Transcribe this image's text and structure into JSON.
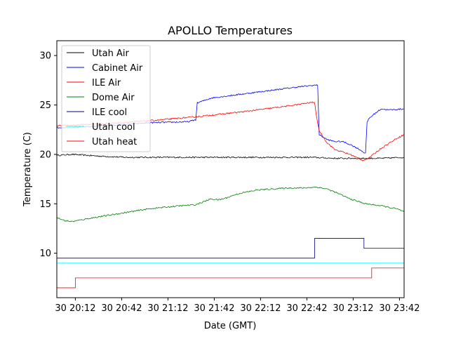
{
  "chart_data": {
    "type": "line",
    "title": "APOLLO Temperatures",
    "xlabel": "Date (GMT)",
    "ylabel": "Temperature (C)",
    "x_unit": "minutes since 30 20:00 GMT",
    "xlim": [
      0,
      225
    ],
    "ylim": [
      5.5,
      31.5
    ],
    "grid": false,
    "legend_position": "upper-left",
    "x_ticks": [
      {
        "value": 12,
        "label": "30 20:12"
      },
      {
        "value": 42,
        "label": "30 20:42"
      },
      {
        "value": 72,
        "label": "30 21:12"
      },
      {
        "value": 102,
        "label": "30 21:42"
      },
      {
        "value": 132,
        "label": "30 22:12"
      },
      {
        "value": 162,
        "label": "30 22:42"
      },
      {
        "value": 192,
        "label": "30 23:12"
      },
      {
        "value": 222,
        "label": "30 23:42"
      }
    ],
    "y_ticks": [
      {
        "value": 10,
        "label": "10"
      },
      {
        "value": 15,
        "label": "15"
      },
      {
        "value": 20,
        "label": "20"
      },
      {
        "value": 25,
        "label": "25"
      },
      {
        "value": 30,
        "label": "30"
      }
    ],
    "series": [
      {
        "name": "Utah Air",
        "color": "#000000",
        "x": [
          0,
          10,
          20,
          30,
          45,
          60,
          75,
          90,
          105,
          120,
          135,
          150,
          165,
          180,
          195,
          210,
          225
        ],
        "y": [
          19.9,
          20.0,
          19.9,
          19.8,
          19.7,
          19.7,
          19.7,
          19.7,
          19.7,
          19.7,
          19.7,
          19.7,
          19.7,
          19.6,
          19.6,
          19.6,
          19.7
        ]
      },
      {
        "name": "Cabinet Air",
        "color": "#0000ff",
        "x": [
          0,
          20,
          40,
          60,
          85,
          90,
          91,
          100,
          110,
          125,
          140,
          155,
          167,
          169,
          170,
          175,
          180,
          185,
          190,
          195,
          200,
          201,
          202,
          205,
          210,
          215,
          225
        ],
        "y": [
          22.7,
          22.8,
          23.0,
          23.2,
          23.3,
          23.5,
          25.2,
          25.7,
          25.9,
          26.2,
          26.5,
          26.8,
          27.0,
          27.0,
          22.0,
          21.5,
          21.3,
          21.3,
          21.0,
          20.6,
          20.1,
          23.2,
          23.6,
          24.0,
          24.6,
          24.5,
          24.6
        ]
      },
      {
        "name": "ILE Air",
        "color": "#ff0000",
        "x": [
          0,
          30,
          60,
          90,
          120,
          150,
          167,
          168,
          170,
          175,
          180,
          190,
          198,
          202,
          210,
          220,
          225
        ],
        "y": [
          22.9,
          23.1,
          23.4,
          23.8,
          24.3,
          24.9,
          25.3,
          24.0,
          22.4,
          21.2,
          20.5,
          20.0,
          19.4,
          19.6,
          20.6,
          21.6,
          22.0
        ]
      },
      {
        "name": "Dome Air",
        "color": "#008000",
        "x": [
          0,
          5,
          10,
          20,
          40,
          60,
          80,
          90,
          95,
          100,
          105,
          110,
          115,
          120,
          130,
          140,
          150,
          160,
          168,
          175,
          180,
          190,
          200,
          210,
          220,
          225
        ],
        "y": [
          13.6,
          13.3,
          13.2,
          13.5,
          14.0,
          14.5,
          14.8,
          14.9,
          15.2,
          15.5,
          15.4,
          15.6,
          15.9,
          16.1,
          16.4,
          16.5,
          16.6,
          16.6,
          16.7,
          16.5,
          16.2,
          15.5,
          15.0,
          14.8,
          14.5,
          14.2
        ]
      },
      {
        "name": "ILE cool",
        "color": "#000080",
        "x": [
          0,
          167,
          167,
          199,
          199,
          225
        ],
        "y": [
          9.5,
          9.5,
          11.5,
          11.5,
          10.5,
          10.5
        ]
      },
      {
        "name": "Utah cool",
        "color": "#00ffff",
        "x": [
          0,
          225
        ],
        "y": [
          9.0,
          9.0
        ]
      },
      {
        "name": "Utah heat",
        "color": "#ff0000",
        "x": [
          0,
          12,
          12,
          204,
          204,
          225
        ],
        "y": [
          6.5,
          6.5,
          7.5,
          7.5,
          8.5,
          8.5
        ]
      }
    ]
  }
}
